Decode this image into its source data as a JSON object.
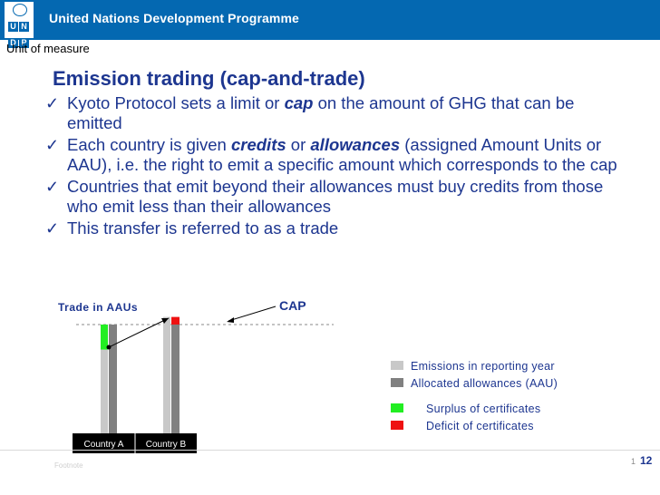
{
  "header": {
    "title": "United Nations Development Programme",
    "logo_letters": [
      "U",
      "N",
      "D",
      "P"
    ]
  },
  "unit_label": "Unit of measure",
  "slide": {
    "title": "Emission trading (cap-and-trade)",
    "bullets": [
      {
        "parts": [
          {
            "text": "Kyoto Protocol sets a limit or ",
            "emph": false
          },
          {
            "text": "cap",
            "emph": true
          },
          {
            "text": " on the amount of GHG that can be emitted",
            "emph": false
          }
        ]
      },
      {
        "parts": [
          {
            "text": "Each country is given ",
            "emph": false
          },
          {
            "text": "credits",
            "emph": true
          },
          {
            "text": " or ",
            "emph": false
          },
          {
            "text": "allowances",
            "emph": true
          },
          {
            "text": " (assigned Amount Units or AAU), i.e. the right to emit a specific amount which corresponds to the cap",
            "emph": false
          }
        ]
      },
      {
        "parts": [
          {
            "text": "Countries that emit beyond their allowances must buy credits from those who emit less than their allowances",
            "emph": false
          }
        ]
      },
      {
        "parts": [
          {
            "text": "This transfer is referred to as a trade",
            "emph": false
          }
        ]
      }
    ]
  },
  "chart_data": {
    "type": "bar",
    "title": "Trade in AAUs",
    "cap_label": "CAP",
    "cap": 100,
    "categories": [
      "Country A",
      "Country B"
    ],
    "series": [
      {
        "name": "Emissions in reporting year",
        "color": "#c8c8c8",
        "values": [
          77,
          107
        ]
      },
      {
        "name": "Allocated allowances (AAU)",
        "color": "#808080",
        "values": [
          100,
          100
        ]
      }
    ],
    "surplus": [
      23,
      0
    ],
    "deficit": [
      0,
      7
    ],
    "legend": [
      {
        "label": "Emissions in reporting year",
        "color": "#c8c8c8"
      },
      {
        "label": "Allocated allowances (AAU)",
        "color": "#808080"
      },
      {
        "label": "Surplus of certificates",
        "color": "#22ee22"
      },
      {
        "label": "Deficit of certificates",
        "color": "#ee1111"
      }
    ],
    "legend_position": "right",
    "grid": false
  },
  "footer": {
    "page_number": "12",
    "page_ghost": "1",
    "faint_text": "Footnote"
  }
}
